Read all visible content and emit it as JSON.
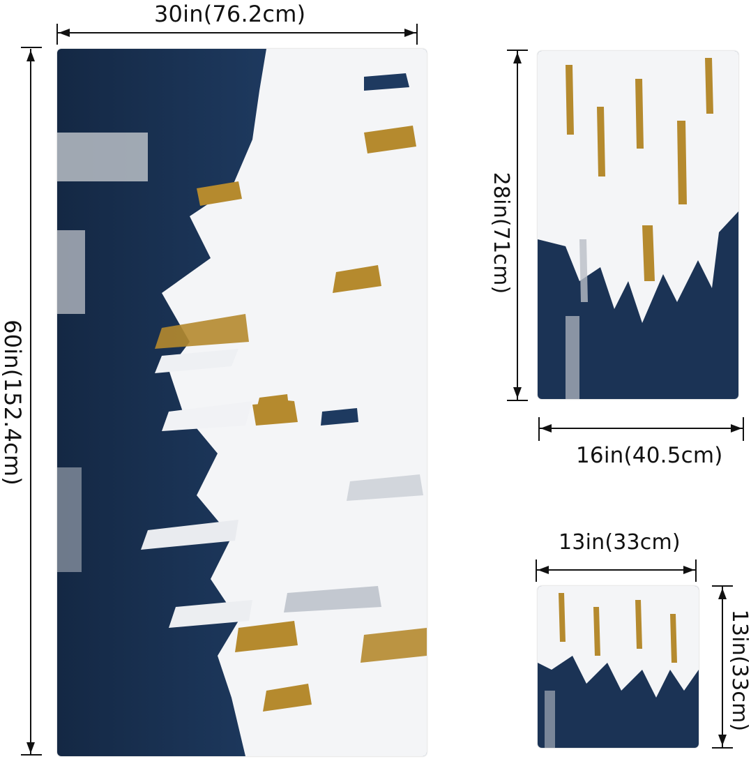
{
  "colors": {
    "navy": "#1b3355",
    "navy_dark": "#142844",
    "white_paint": "#f4f5f7",
    "gold": "#b58a2e",
    "grey": "#b9bec6",
    "line": "#111111"
  },
  "towels": {
    "bath": {
      "width_label": "30in(76.2cm)",
      "height_label": "60in(152.4cm)"
    },
    "hand": {
      "height_label": "28in(71cm)",
      "width_label": "16in(40.5cm)"
    },
    "wash": {
      "width_label": "13in(33cm)",
      "height_label": "13in(33cm)"
    }
  }
}
